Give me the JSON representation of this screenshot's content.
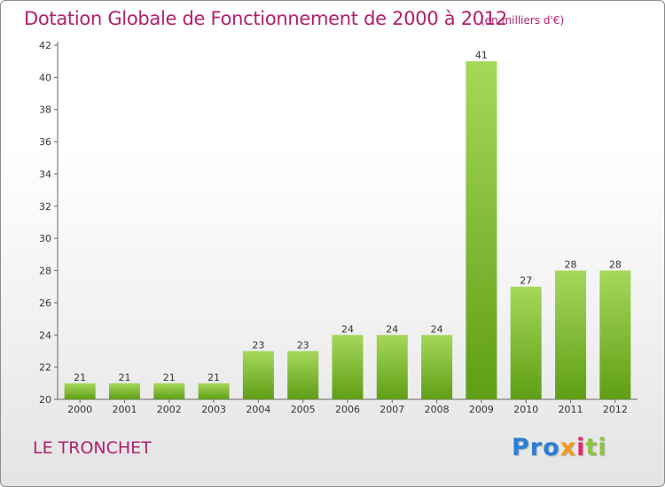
{
  "header": {
    "title": "Dotation Globale de Fonctionnement de 2000 à 2012",
    "subtitle": "(en milliers d'€)"
  },
  "footer": {
    "town": "LE TRONCHET",
    "logo_parts": [
      "Pro",
      "x",
      "i",
      "ti"
    ]
  },
  "colors": {
    "title": "#b0206e",
    "bar_top": "#a6d85a",
    "bar_bottom": "#5f9e16",
    "logo": [
      "#2b7fd4",
      "#f29a1b",
      "#e52a6f",
      "#8cc63f"
    ]
  },
  "chart_data": {
    "type": "bar",
    "title": "Dotation Globale de Fonctionnement de 2000 à 2012",
    "subtitle": "(en milliers d'€)",
    "categories": [
      "2000",
      "2001",
      "2002",
      "2003",
      "2004",
      "2005",
      "2006",
      "2007",
      "2008",
      "2009",
      "2010",
      "2011",
      "2012"
    ],
    "values": [
      21,
      21,
      21,
      21,
      23,
      23,
      24,
      24,
      24,
      41,
      27,
      28,
      28
    ],
    "ylim": [
      20,
      42
    ],
    "yticks": [
      20,
      22,
      24,
      26,
      28,
      30,
      32,
      34,
      36,
      38,
      40,
      42
    ],
    "grid": false,
    "data_labels": true
  }
}
